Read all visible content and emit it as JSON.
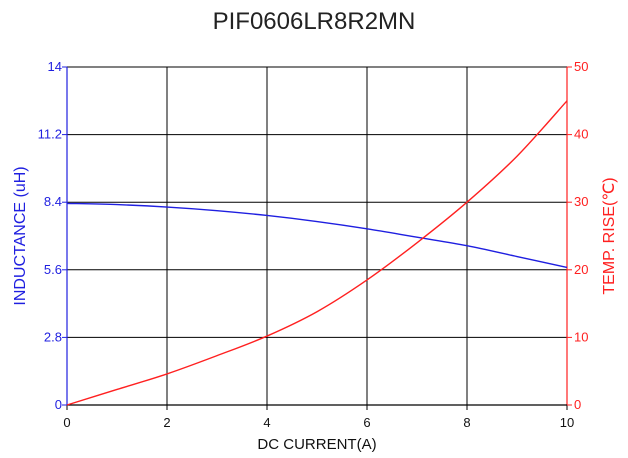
{
  "chart_data": {
    "type": "line",
    "title": "PIF0606LR8R2MN",
    "xlabel": "DC CURRENT(A)",
    "ylabel_left": "INDUCTANCE (uH)",
    "ylabel_right": "TEMP. RISE(℃)",
    "xlim": [
      0,
      10
    ],
    "ylim_left": [
      0,
      14
    ],
    "ylim_right": [
      0,
      50
    ],
    "x_ticks": [
      "0",
      "2",
      "4",
      "6",
      "8",
      "10"
    ],
    "y_left_ticks": [
      "0",
      "2.8",
      "5.6",
      "8.4",
      "11.2",
      "14"
    ],
    "y_right_ticks": [
      "0",
      "10",
      "20",
      "30",
      "40",
      "50"
    ],
    "grid": true,
    "colors": {
      "inductance": "#1f1fe0",
      "temp": "#ff2020",
      "grid": "#000000"
    },
    "series": [
      {
        "axis": "left",
        "x": [
          0,
          1,
          2,
          3,
          4,
          5,
          6,
          7,
          8,
          9,
          10
        ],
        "values": [
          8.35,
          8.3,
          8.2,
          8.05,
          7.85,
          7.6,
          7.3,
          6.95,
          6.6,
          6.15,
          5.7
        ]
      },
      {
        "axis": "right",
        "x": [
          0,
          1,
          2,
          3,
          4,
          5,
          6,
          7,
          8,
          9,
          10
        ],
        "values": [
          0,
          2.3,
          4.6,
          7.3,
          10.2,
          13.8,
          18.5,
          24,
          30,
          36.8,
          45
        ]
      }
    ]
  }
}
